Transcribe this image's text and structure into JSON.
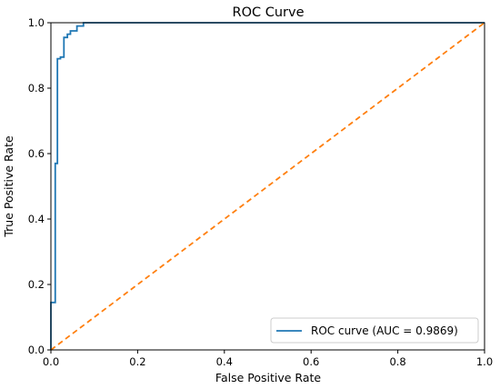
{
  "chart_data": {
    "type": "line",
    "title": "ROC Curve",
    "xlabel": "False Positive Rate",
    "ylabel": "True Positive Rate",
    "xlim": [
      0.0,
      1.0
    ],
    "ylim": [
      0.0,
      1.0
    ],
    "xticks": [
      0.0,
      0.2,
      0.4,
      0.6,
      0.8,
      1.0
    ],
    "yticks": [
      0.0,
      0.2,
      0.4,
      0.6,
      0.8,
      1.0
    ],
    "xtick_labels": [
      "0.0",
      "0.2",
      "0.4",
      "0.6",
      "0.8",
      "1.0"
    ],
    "ytick_labels": [
      "0.0",
      "0.2",
      "0.4",
      "0.6",
      "0.8",
      "1.0"
    ],
    "grid": false,
    "legend_position": "lower-right",
    "series": [
      {
        "name": "ROC curve (AUC = 0.9869)",
        "style": "solid",
        "color": "#1f77b4",
        "points": [
          [
            0.0,
            0.0
          ],
          [
            0.0,
            0.145
          ],
          [
            0.01,
            0.145
          ],
          [
            0.01,
            0.57
          ],
          [
            0.015,
            0.57
          ],
          [
            0.015,
            0.89
          ],
          [
            0.022,
            0.89
          ],
          [
            0.022,
            0.895
          ],
          [
            0.03,
            0.895
          ],
          [
            0.03,
            0.955
          ],
          [
            0.038,
            0.955
          ],
          [
            0.038,
            0.965
          ],
          [
            0.045,
            0.965
          ],
          [
            0.045,
            0.975
          ],
          [
            0.06,
            0.975
          ],
          [
            0.06,
            0.99
          ],
          [
            0.075,
            0.99
          ],
          [
            0.075,
            1.0
          ],
          [
            1.0,
            1.0
          ]
        ]
      },
      {
        "name": "",
        "style": "dashed",
        "color": "#ff7f0e",
        "points": [
          [
            0.0,
            0.0
          ],
          [
            1.0,
            1.0
          ]
        ]
      }
    ]
  }
}
